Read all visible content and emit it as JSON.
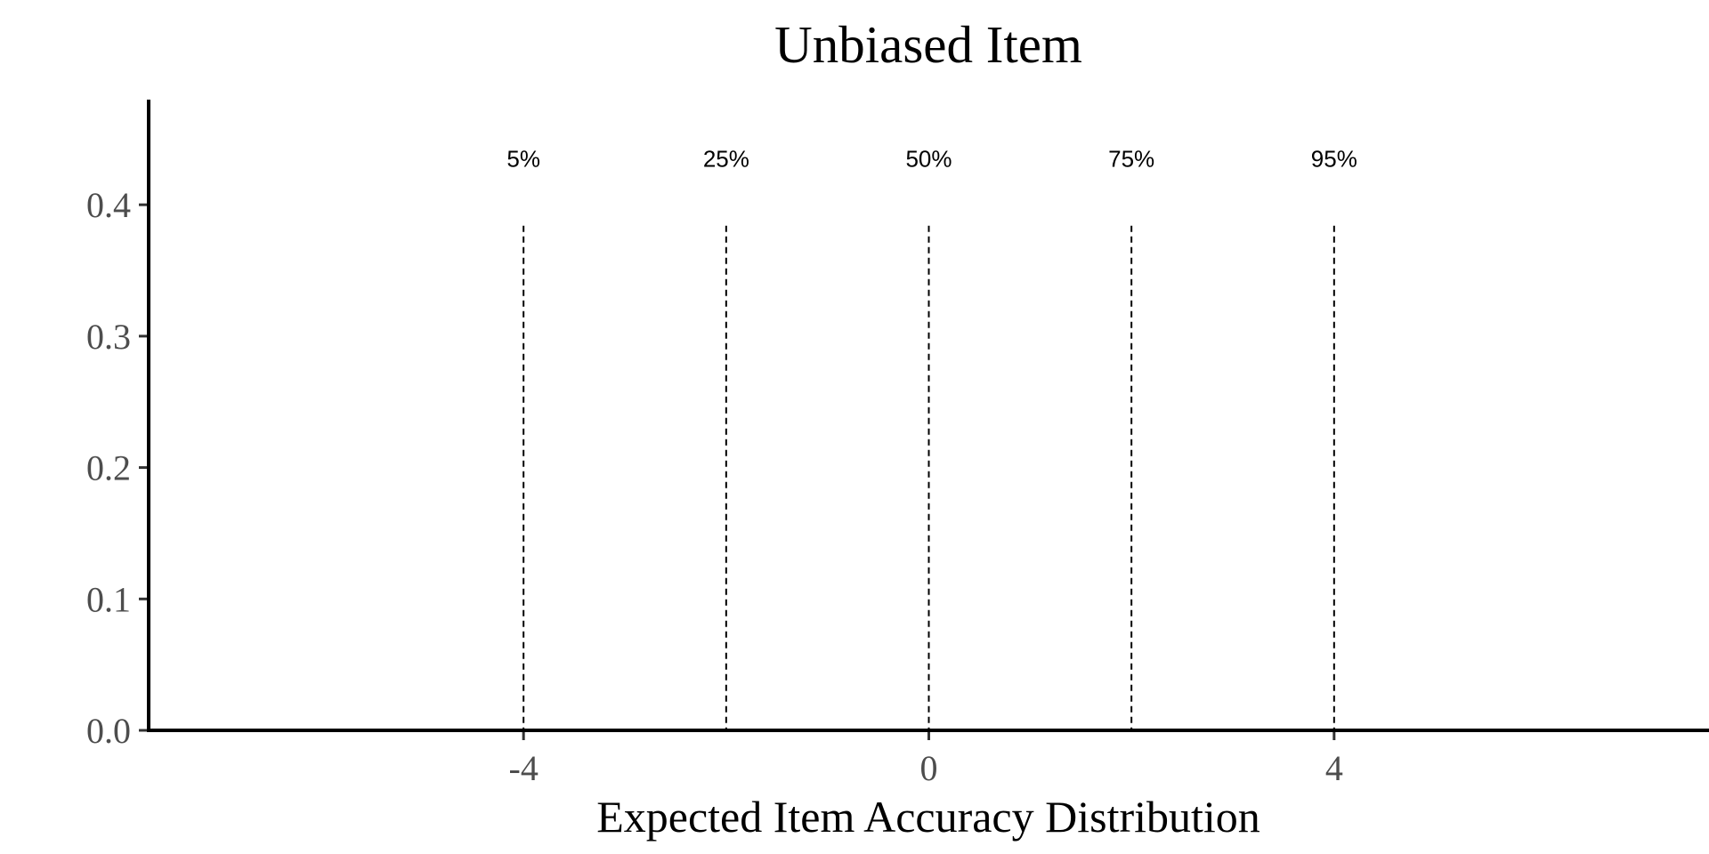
{
  "chart_data": {
    "type": "line",
    "title": "Unbiased Item",
    "xlabel": "Expected Item Accuracy Distribution",
    "ylabel": "",
    "xlim": [
      -7.7,
      7.7
    ],
    "ylim": [
      0,
      0.48
    ],
    "xticks": [
      -4,
      0,
      4
    ],
    "xtick_labels": [
      "-4",
      "0",
      "4"
    ],
    "yticks": [
      0.0,
      0.1,
      0.2,
      0.3,
      0.4
    ],
    "ytick_labels": [
      "0.0",
      "0.1",
      "0.2",
      "0.3",
      "0.4"
    ],
    "grid": false,
    "legend": "none",
    "vlines": [
      {
        "x": -4,
        "label": "5%"
      },
      {
        "x": -2,
        "label": "25%"
      },
      {
        "x": 0,
        "label": "50%"
      },
      {
        "x": 2,
        "label": "75%"
      },
      {
        "x": 4,
        "label": "95%"
      }
    ],
    "vline_top": 0.384,
    "annotation_y": 0.435,
    "series": []
  }
}
